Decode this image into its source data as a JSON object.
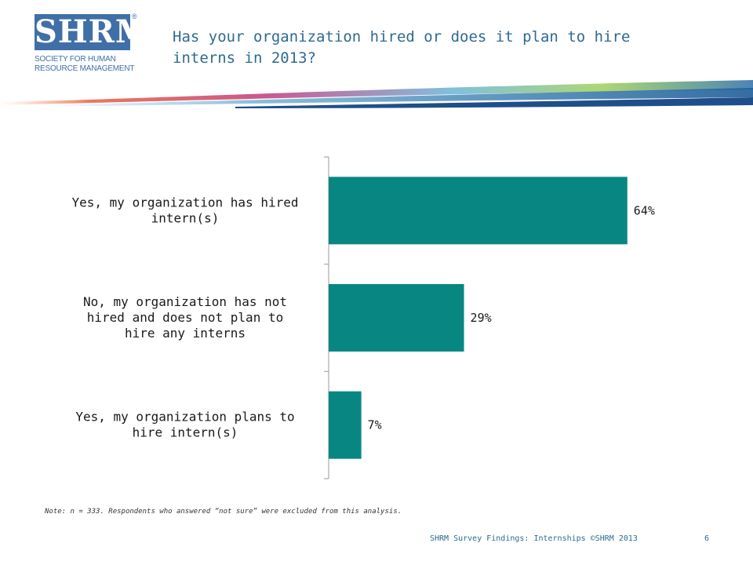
{
  "logo": {
    "mark": "SHRM",
    "registered": "®",
    "line1": "SOCIETY FOR HUMAN",
    "line2": "RESOURCE MANAGEMENT"
  },
  "title": "Has your organization hired or does it plan to hire\ninterns in 2013?",
  "colors": {
    "bar": "#088782",
    "title": "#2e6b8f",
    "brand": "#3f6fa6"
  },
  "chart_data": {
    "type": "bar",
    "orientation": "horizontal",
    "categories": [
      [
        "Yes, my organization has hired",
        "intern(s)"
      ],
      [
        "No, my organization has not",
        "hired and does not plan to",
        "hire any interns"
      ],
      [
        "Yes, my organization plans to",
        "hire intern(s)"
      ]
    ],
    "values": [
      64,
      29,
      7
    ],
    "value_labels": [
      "64%",
      "29%",
      "7%"
    ],
    "xlim": [
      0,
      100
    ],
    "grid": false,
    "legend": "none"
  },
  "note": "Note: n = 333. Respondents who answered “not sure” were excluded from this analysis.",
  "footer": "SHRM Survey Findings: Internships ©SHRM 2013",
  "page_number": "6"
}
